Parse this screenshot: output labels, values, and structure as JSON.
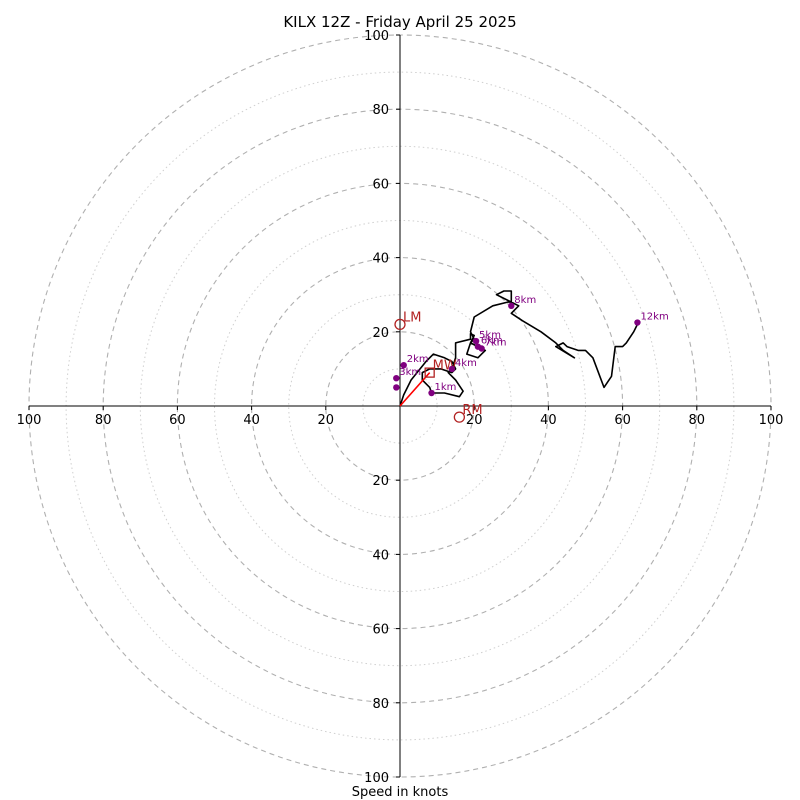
{
  "chart_data": {
    "type": "hodograph",
    "title": "KILX 12Z - Friday April 25 2025",
    "xlabel": "Speed in knots",
    "range": [
      -100,
      100
    ],
    "ring_step_major": 20,
    "ring_step_minor": 10,
    "tick_labels": [
      "100",
      "80",
      "60",
      "40",
      "20",
      "20",
      "40",
      "60",
      "80",
      "100"
    ],
    "axis_tick_values": [
      -100,
      -80,
      -60,
      -40,
      -20,
      20,
      40,
      60,
      80,
      100
    ],
    "trace_color": "#000000",
    "label_color": "#800080",
    "motion_color": "#b22222",
    "mean_wind_vector_color": "#ff0000",
    "hodograph": [
      [
        0,
        0
      ],
      [
        1,
        3
      ],
      [
        3,
        7
      ],
      [
        7,
        12
      ],
      [
        9,
        14
      ],
      [
        12,
        13
      ],
      [
        14,
        12
      ],
      [
        15,
        10
      ],
      [
        14,
        9
      ],
      [
        11,
        10
      ],
      [
        8,
        10
      ],
      [
        6,
        9
      ],
      [
        6,
        7
      ],
      [
        8,
        5
      ],
      [
        8.5,
        3.5
      ],
      [
        12,
        3.5
      ],
      [
        16,
        2.5
      ],
      [
        17,
        4
      ],
      [
        15,
        7
      ],
      [
        13,
        9
      ],
      [
        14,
        10
      ],
      [
        15,
        13
      ],
      [
        15,
        17
      ],
      [
        19,
        18
      ],
      [
        19,
        19.5
      ],
      [
        20,
        19
      ],
      [
        19,
        17
      ],
      [
        21,
        16
      ],
      [
        23,
        15
      ],
      [
        22,
        14
      ],
      [
        21,
        13
      ],
      [
        18,
        14
      ],
      [
        19,
        17
      ],
      [
        20,
        18
      ],
      [
        19,
        20
      ],
      [
        20,
        24
      ],
      [
        25,
        27
      ],
      [
        29,
        28
      ],
      [
        30,
        28
      ],
      [
        30,
        31
      ],
      [
        28,
        31
      ],
      [
        26,
        30
      ],
      [
        30,
        28
      ],
      [
        32,
        27
      ],
      [
        30,
        25
      ],
      [
        33,
        23
      ],
      [
        38,
        20
      ],
      [
        42,
        17
      ],
      [
        44,
        15
      ],
      [
        47,
        13
      ],
      [
        42,
        16
      ],
      [
        44,
        17
      ],
      [
        45,
        16
      ],
      [
        48,
        15
      ],
      [
        50,
        15
      ],
      [
        52,
        13
      ],
      [
        55,
        5
      ],
      [
        57,
        8
      ],
      [
        58,
        16
      ],
      [
        60,
        16
      ],
      [
        61,
        17
      ],
      [
        63,
        20
      ],
      [
        64,
        22
      ]
    ],
    "height_markers": [
      {
        "label": "1km",
        "u": 8.5,
        "v": 3.5
      },
      {
        "label": "2km",
        "u": 1,
        "v": 11
      },
      {
        "label": "3km",
        "u": -1,
        "v": 7.5
      },
      {
        "label": "4km",
        "u": 14,
        "v": 10
      },
      {
        "label": "5km",
        "u": 20.5,
        "v": 17.5
      },
      {
        "label": "6km",
        "u": 21,
        "v": 16
      },
      {
        "label": "7km",
        "u": 22,
        "v": 15.5
      },
      {
        "label": "8km",
        "u": 30,
        "v": 27
      },
      {
        "label": "12km",
        "u": 64,
        "v": 22.5
      }
    ],
    "hidden_marker": {
      "u": -1,
      "v": 5
    },
    "storm_motions": [
      {
        "label": "LM",
        "u": 0,
        "v": 22
      },
      {
        "label": "RM",
        "u": 16,
        "v": -3
      },
      {
        "label": "MW",
        "u": 8,
        "v": 9
      }
    ]
  }
}
